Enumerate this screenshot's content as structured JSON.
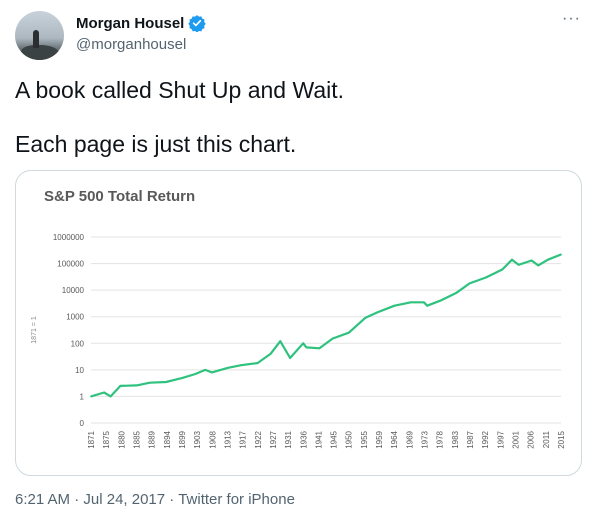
{
  "tweet": {
    "author": {
      "display_name": "Morgan Housel",
      "handle": "@morganhousel",
      "verified": true
    },
    "more_label": "···",
    "lines": [
      "A book called Shut Up and Wait.",
      "Each page is just this chart."
    ],
    "time": "6:21 AM",
    "date": "Jul 24, 2017",
    "source": "Twitter for iPhone",
    "separator": " · "
  },
  "colors": {
    "accent": "#1d9bf0",
    "series": "#2ec27e",
    "text_muted": "#536471"
  },
  "chart_data": {
    "type": "line",
    "title": "S&P 500 Total Return",
    "ylabel": "1871 = 1",
    "y_scale": "log",
    "y_ticks": [
      "0",
      "1",
      "10",
      "100",
      "1000",
      "10000",
      "100000",
      "1000000"
    ],
    "y_tick_values": [
      0.1,
      1,
      10,
      100,
      1000,
      10000,
      100000,
      1000000
    ],
    "x_ticks": [
      "1871",
      "1875",
      "1880",
      "1885",
      "1889",
      "1894",
      "1899",
      "1903",
      "1908",
      "1913",
      "1917",
      "1922",
      "1927",
      "1931",
      "1936",
      "1941",
      "1945",
      "1950",
      "1955",
      "1959",
      "1964",
      "1969",
      "1973",
      "1978",
      "1983",
      "1987",
      "1992",
      "1997",
      "2001",
      "2006",
      "2011",
      "2015"
    ],
    "grid": true,
    "series": [
      {
        "x": [
          1871,
          1875,
          1877,
          1880,
          1885,
          1889,
          1894,
          1899,
          1903,
          1906,
          1908,
          1913,
          1917,
          1922,
          1926,
          1929,
          1932,
          1936,
          1937,
          1941,
          1945,
          1950,
          1955,
          1959,
          1964,
          1969,
          1973,
          1974,
          1978,
          1983,
          1987,
          1992,
          1997,
          2000,
          2002,
          2006,
          2008,
          2011,
          2015
        ],
        "y": [
          1,
          1.4,
          1,
          2.5,
          2.6,
          3.3,
          3.5,
          5,
          7,
          10,
          8,
          12,
          15,
          18,
          40,
          120,
          28,
          100,
          70,
          65,
          150,
          250,
          900,
          1500,
          2600,
          3500,
          3500,
          2600,
          4000,
          8000,
          18000,
          30000,
          60000,
          140000,
          90000,
          130000,
          85000,
          140000,
          220000
        ]
      }
    ]
  }
}
